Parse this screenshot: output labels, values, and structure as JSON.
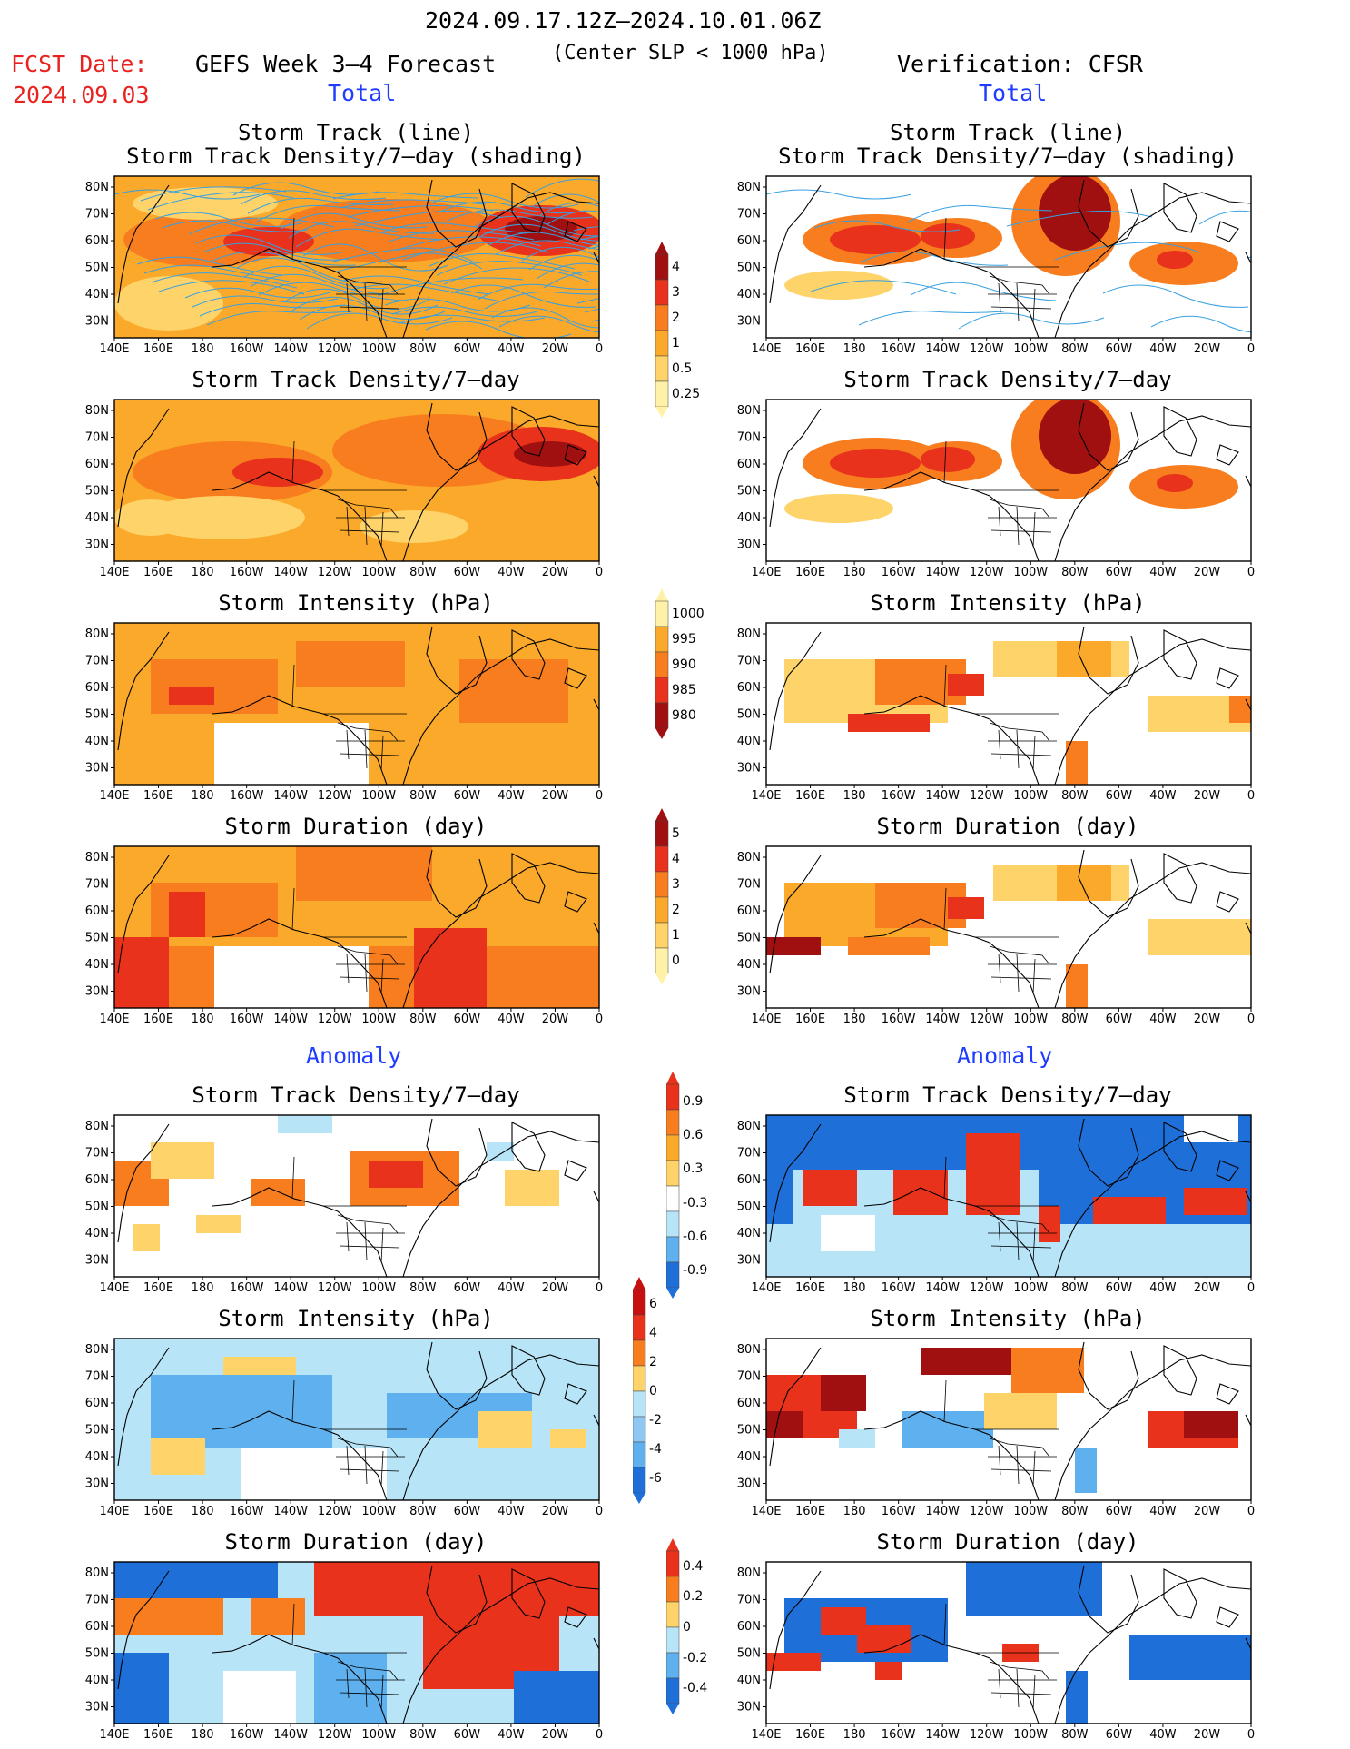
{
  "header": {
    "date_range": "2024.09.17.12Z–2024.10.01.06Z",
    "fcst_label": "FCST Date:",
    "fcst_date": "2024.09.03",
    "left_title": "GEFS Week 3–4 Forecast",
    "criteria": "(Center SLP < 1000 hPa)",
    "right_title": "Verification: CFSR"
  },
  "sections": {
    "total": "Total",
    "anomaly": "Anomaly"
  },
  "panel_titles": {
    "track_line": "Storm Track (line)",
    "track_shading": "Storm Track Density/7–day (shading)",
    "density": "Storm Track Density/7–day",
    "intensity": "Storm Intensity (hPa)",
    "duration": "Storm Duration (day)"
  },
  "axes": {
    "lat": [
      "80N",
      "70N",
      "60N",
      "50N",
      "40N",
      "30N"
    ],
    "lon": [
      "140E",
      "160E",
      "180",
      "160W",
      "140W",
      "120W",
      "100W",
      "80W",
      "60W",
      "40W",
      "20W",
      "0"
    ]
  },
  "colorbars": {
    "density_total": {
      "labels": [
        "4",
        "3",
        "2",
        "1",
        "0.5",
        "0.25"
      ],
      "colors": [
        "#a01010",
        "#e8321b",
        "#f77d1e",
        "#fba92a",
        "#fdd36a",
        "#fff2a8"
      ]
    },
    "intensity_total": {
      "labels": [
        "1000",
        "995",
        "990",
        "985",
        "980"
      ],
      "colors": [
        "#fff2a8",
        "#fba92a",
        "#f77d1e",
        "#e8321b",
        "#a01010"
      ]
    },
    "duration_total": {
      "labels": [
        "5",
        "4",
        "3",
        "2",
        "1",
        "0"
      ],
      "colors": [
        "#a01010",
        "#e8321b",
        "#f77d1e",
        "#fba92a",
        "#fdd36a",
        "#fff2a8"
      ]
    },
    "density_anom": {
      "labels": [
        "0.9",
        "0.6",
        "0.3",
        "-0.3",
        "-0.6",
        "-0.9"
      ],
      "colors": [
        "#e8321b",
        "#f77d1e",
        "#fba92a",
        "#fdd36a",
        "#ffffff",
        "#b8e4f8",
        "#5eb0ee",
        "#1f6fd8"
      ]
    },
    "intensity_anom": {
      "labels": [
        "6",
        "4",
        "2",
        "0",
        "-2",
        "-4",
        "-6"
      ],
      "colors": [
        "#c81010",
        "#e8321b",
        "#f77d1e",
        "#fdd36a",
        "#b8e4f8",
        "#8ec8f2",
        "#5eb0ee",
        "#1f6fd8"
      ]
    },
    "duration_anom": {
      "labels": [
        "0.4",
        "0.2",
        "0",
        "-0.2",
        "-0.4"
      ],
      "colors": [
        "#e8321b",
        "#f77d1e",
        "#fdd36a",
        "#b8e4f8",
        "#5eb0ee",
        "#1f6fd8"
      ]
    }
  },
  "colors": {
    "dark_red": "#a01010",
    "red": "#e8321b",
    "orange": "#f77d1e",
    "light_orange": "#fba92a",
    "yellow": "#fdd36a",
    "pale_yellow": "#fff2a8",
    "light_blue": "#b8e4f8",
    "mid_blue": "#5eb0ee",
    "dark_blue": "#1f6fd8",
    "track_line": "#39a0e0"
  }
}
